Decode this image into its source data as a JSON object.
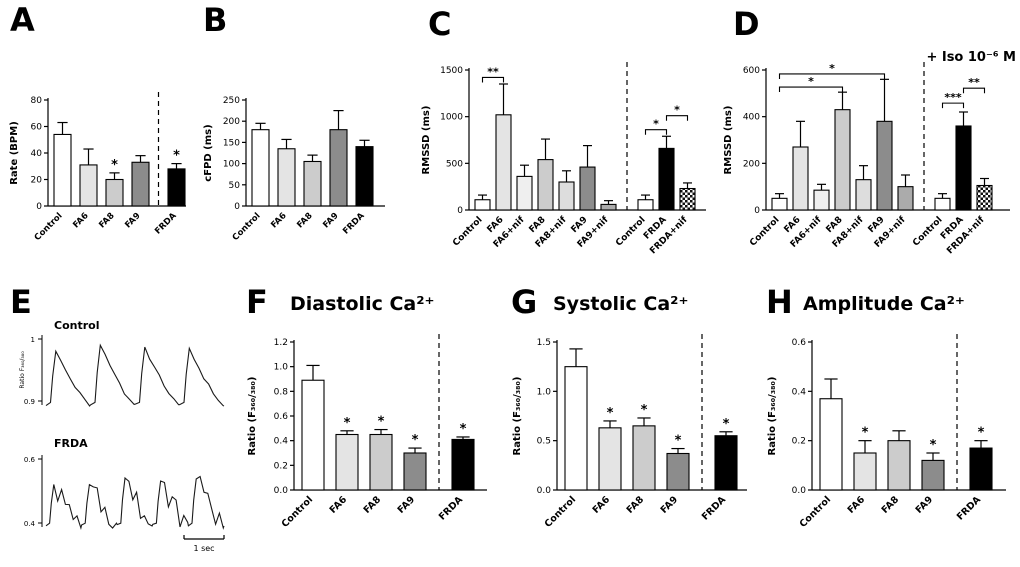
{
  "chart_data": [
    {
      "panel": "A",
      "type": "bar",
      "ylabel": "Rate (BPM)",
      "ylim": [
        0,
        80
      ],
      "yticks": [
        "0",
        "20",
        "40",
        "60",
        "80"
      ],
      "categories": [
        "Control",
        "FA6",
        "FA8",
        "FA9",
        "FRDA"
      ],
      "values": [
        54,
        31,
        20,
        33,
        28
      ],
      "errors": [
        9,
        12,
        5,
        5,
        4
      ],
      "stars": [
        "",
        "",
        "*",
        "",
        "*"
      ],
      "fills": [
        "#ffffff",
        "#e4e4e4",
        "#cccccc",
        "#8c8c8c",
        "#000000"
      ],
      "divider_before": 4,
      "brackets": []
    },
    {
      "panel": "B",
      "type": "bar",
      "ylabel": "cFPD (ms)",
      "ylim": [
        0,
        250
      ],
      "yticks": [
        "0",
        "50",
        "100",
        "150",
        "200",
        "250"
      ],
      "categories": [
        "Control",
        "FA6",
        "FA8",
        "FA9",
        "FRDA"
      ],
      "values": [
        180,
        135,
        105,
        180,
        140
      ],
      "errors": [
        15,
        22,
        15,
        45,
        15
      ],
      "stars": [
        "",
        "",
        "",
        "",
        ""
      ],
      "fills": [
        "#ffffff",
        "#e4e4e4",
        "#cccccc",
        "#8c8c8c",
        "#000000"
      ],
      "divider_before": null,
      "brackets": []
    },
    {
      "panel": "C",
      "type": "bar",
      "ylabel": "RMSSD (ms)",
      "ylim": [
        0,
        1500
      ],
      "yticks": [
        "0",
        "500",
        "1000",
        "1500"
      ],
      "categories": [
        "Control",
        "FA6",
        "FA6+nif",
        "FA8",
        "FA8+nif",
        "FA9",
        "FA9+nif",
        "Control",
        "FRDA",
        "FRDA+nif"
      ],
      "values": [
        110,
        1020,
        360,
        540,
        300,
        460,
        60,
        110,
        660,
        230
      ],
      "errors": [
        50,
        330,
        120,
        220,
        120,
        230,
        40,
        50,
        130,
        60
      ],
      "stars": [
        "",
        "",
        "",
        "",
        "",
        "",
        "",
        "",
        "",
        ""
      ],
      "fills": [
        "#ffffff",
        "#e4e4e4",
        "#efefef",
        "#cccccc",
        "#dddddd",
        "#8c8c8c",
        "#ababab",
        "#ffffff",
        "#000000",
        "checker"
      ],
      "divider_before": 7,
      "brackets": [
        {
          "from": 0,
          "to": 1,
          "label": "**",
          "y": 1420
        },
        {
          "from": 7,
          "to": 8,
          "label": "*",
          "y": 860
        },
        {
          "from": 8,
          "to": 9,
          "label": "*",
          "y": 1010
        }
      ]
    },
    {
      "panel": "D",
      "type": "bar",
      "ylabel": "RMSSD (ms)",
      "ylim": [
        0,
        600
      ],
      "yticks": [
        "0",
        "200",
        "400",
        "600"
      ],
      "annotation": "+ Iso 10⁻⁶ M",
      "categories": [
        "Control",
        "FA6",
        "FA6+nif",
        "FA8",
        "FA8+nif",
        "FA9",
        "FA9+nif",
        "Control",
        "FRDA",
        "FRDA+nif"
      ],
      "values": [
        50,
        270,
        85,
        430,
        130,
        380,
        100,
        50,
        360,
        105
      ],
      "errors": [
        20,
        110,
        25,
        75,
        60,
        180,
        50,
        20,
        60,
        30
      ],
      "stars": [
        "",
        "",
        "",
        "",
        "",
        "",
        "",
        "",
        "",
        ""
      ],
      "fills": [
        "#ffffff",
        "#e4e4e4",
        "#efefef",
        "#cccccc",
        "#dddddd",
        "#8c8c8c",
        "#ababab",
        "#ffffff",
        "#000000",
        "checker"
      ],
      "divider_before": 7,
      "brackets": [
        {
          "from": 0,
          "to": 3,
          "label": "*",
          "y": 527
        },
        {
          "from": 0,
          "to": 5,
          "label": "*",
          "y": 583
        },
        {
          "from": 7,
          "to": 8,
          "label": "***",
          "y": 458
        },
        {
          "from": 8,
          "to": 9,
          "label": "**",
          "y": 522
        }
      ]
    },
    {
      "panel": "F",
      "type": "bar",
      "title": "Diastolic Ca²⁺",
      "ylabel": "Ratio (F₃₆₀/₃₈₀)",
      "ylim": [
        0,
        1.2
      ],
      "yticks": [
        "0.0",
        "0.2",
        "0.4",
        "0.6",
        "0.8",
        "1.0",
        "1.2"
      ],
      "categories": [
        "Control",
        "FA6",
        "FA8",
        "FA9",
        "FRDA"
      ],
      "values": [
        0.89,
        0.45,
        0.45,
        0.3,
        0.41
      ],
      "errors": [
        0.12,
        0.03,
        0.04,
        0.04,
        0.02
      ],
      "stars": [
        "",
        "*",
        "*",
        "*",
        "*"
      ],
      "fills": [
        "#ffffff",
        "#e4e4e4",
        "#cccccc",
        "#8c8c8c",
        "#000000"
      ],
      "divider_before": 4,
      "brackets": []
    },
    {
      "panel": "G",
      "type": "bar",
      "title": "Systolic Ca²⁺",
      "ylabel": "Ratio (F₃₆₀/₃₈₀)",
      "ylim": [
        0,
        1.5
      ],
      "yticks": [
        "0.0",
        "0.5",
        "1.0",
        "1.5"
      ],
      "categories": [
        "Control",
        "FA6",
        "FA8",
        "FA9",
        "FRDA"
      ],
      "values": [
        1.25,
        0.63,
        0.65,
        0.37,
        0.55
      ],
      "errors": [
        0.18,
        0.07,
        0.08,
        0.05,
        0.04
      ],
      "stars": [
        "",
        "*",
        "*",
        "*",
        "*"
      ],
      "fills": [
        "#ffffff",
        "#e4e4e4",
        "#cccccc",
        "#8c8c8c",
        "#000000"
      ],
      "divider_before": 4,
      "brackets": []
    },
    {
      "panel": "H",
      "type": "bar",
      "title": "Amplitude Ca²⁺",
      "ylabel": "Ratio (F₃₆₀/₃₈₀)",
      "ylim": [
        0,
        0.6
      ],
      "yticks": [
        "0.0",
        "0.2",
        "0.4",
        "0.6"
      ],
      "categories": [
        "Control",
        "FA6",
        "FA8",
        "FA9",
        "FRDA"
      ],
      "values": [
        0.37,
        0.15,
        0.2,
        0.12,
        0.17
      ],
      "errors": [
        0.08,
        0.05,
        0.04,
        0.03,
        0.03
      ],
      "stars": [
        "",
        "*",
        "",
        "*",
        "*"
      ],
      "fills": [
        "#ffffff",
        "#e4e4e4",
        "#cccccc",
        "#8c8c8c",
        "#000000"
      ],
      "divider_before": 4,
      "brackets": []
    }
  ],
  "trace_panel": {
    "panel": "E",
    "ylabel": "Ratio F₃₆₀/₃₈₀",
    "traces": [
      {
        "label": "Control",
        "tick_top": "1",
        "tick_bottom": "0.9"
      },
      {
        "label": "FRDA",
        "tick_top": "0.6",
        "tick_bottom": "0.4"
      }
    ],
    "scalebar": "1 sec"
  }
}
